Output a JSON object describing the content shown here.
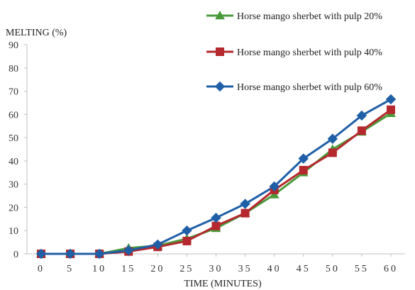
{
  "chart_data": {
    "type": "line",
    "title": "",
    "xlabel": "TIME (MINUTES)",
    "ylabel": "MELTING (%)",
    "x": [
      0,
      5,
      10,
      15,
      20,
      25,
      30,
      35,
      40,
      45,
      50,
      55,
      60
    ],
    "xlim": [
      0,
      60
    ],
    "ylim": [
      0,
      90
    ],
    "yticks": [
      0,
      10,
      20,
      30,
      40,
      50,
      60,
      70,
      80,
      90
    ],
    "grid": false,
    "legend_position": "top-right",
    "series": [
      {
        "name": "Horse mango sherbet with pulp 20%",
        "color": "#4a9a3a",
        "marker": "triangle",
        "values": [
          0,
          0,
          0,
          2.5,
          3.5,
          6.5,
          11,
          17.5,
          25.5,
          35,
          45,
          52.5,
          60.5
        ]
      },
      {
        "name": "Horse mango sherbet with pulp 40%",
        "color": "#b5282e",
        "marker": "square",
        "values": [
          0,
          0,
          0,
          1,
          3,
          5.5,
          12,
          17.5,
          27.5,
          36,
          43.5,
          53,
          62
        ]
      },
      {
        "name": "Horse mango sherbet with pulp 60%",
        "color": "#1f5fa6",
        "marker": "diamond",
        "values": [
          0,
          0,
          0,
          1.5,
          4,
          10,
          15.5,
          21.5,
          29,
          41,
          49.5,
          59.5,
          66.5
        ]
      }
    ]
  }
}
